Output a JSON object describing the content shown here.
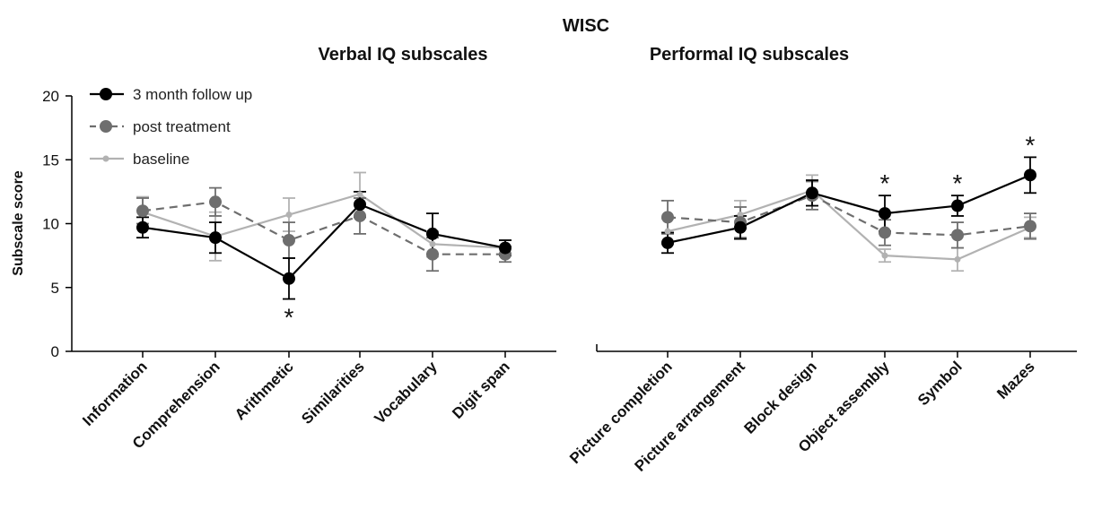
{
  "chart_data": {
    "type": "line",
    "title": "WISC",
    "ylabel": "Subscale score",
    "ylim": [
      0,
      20
    ],
    "yticks": [
      "0",
      "5",
      "10",
      "15",
      "20"
    ],
    "legend_position": "top-left",
    "panels": [
      {
        "subtitle": "Verbal IQ subscales",
        "categories": [
          "Information",
          "Comprehension",
          "Arithmetic",
          "Similarities",
          "Vocabulary",
          "Digit span"
        ],
        "significant": [
          false,
          false,
          true,
          false,
          false,
          false
        ]
      },
      {
        "subtitle": "Performal IQ subscales",
        "categories": [
          "Picture completion",
          "Picture arrangement",
          "Block design",
          "Object assembly",
          "Symbol",
          "Mazes"
        ],
        "significant": [
          false,
          false,
          false,
          true,
          true,
          true
        ]
      }
    ],
    "significance_marker": "*",
    "series": [
      {
        "name": "3 month follow up",
        "color": "#000000",
        "line": "solid",
        "marker": "large-circle",
        "values": [
          [
            9.7,
            8.9,
            5.7,
            11.5,
            9.2,
            8.1
          ],
          [
            8.5,
            9.7,
            12.4,
            10.8,
            11.4,
            13.8
          ]
        ],
        "errors": [
          [
            0.8,
            1.2,
            1.6,
            1.0,
            1.6,
            0.6
          ],
          [
            0.8,
            0.9,
            1.0,
            1.4,
            0.8,
            1.4
          ]
        ]
      },
      {
        "name": "post treatment",
        "color": "#6e6e6e",
        "line": "dashed",
        "marker": "large-circle",
        "values": [
          [
            11.0,
            11.7,
            8.7,
            10.6,
            7.6,
            7.6
          ],
          [
            10.5,
            10.1,
            12.2,
            9.3,
            9.1,
            9.8
          ]
        ],
        "errors": [
          [
            1.0,
            1.1,
            1.4,
            1.4,
            1.3,
            0.6
          ],
          [
            1.3,
            1.2,
            1.1,
            1.0,
            1.0,
            1.0
          ]
        ]
      },
      {
        "name": "baseline",
        "color": "#b2b2b2",
        "line": "solid",
        "marker": "small-dot",
        "values": [
          [
            10.9,
            9.0,
            10.7,
            12.3,
            8.4,
            8.1
          ],
          [
            9.4,
            10.7,
            12.6,
            7.5,
            7.2,
            9.7
          ]
        ],
        "errors": [
          [
            1.2,
            1.9,
            1.3,
            1.7,
            1.0,
            0.6
          ],
          [
            1.0,
            1.1,
            1.2,
            0.5,
            0.9,
            0.8
          ]
        ]
      }
    ]
  }
}
